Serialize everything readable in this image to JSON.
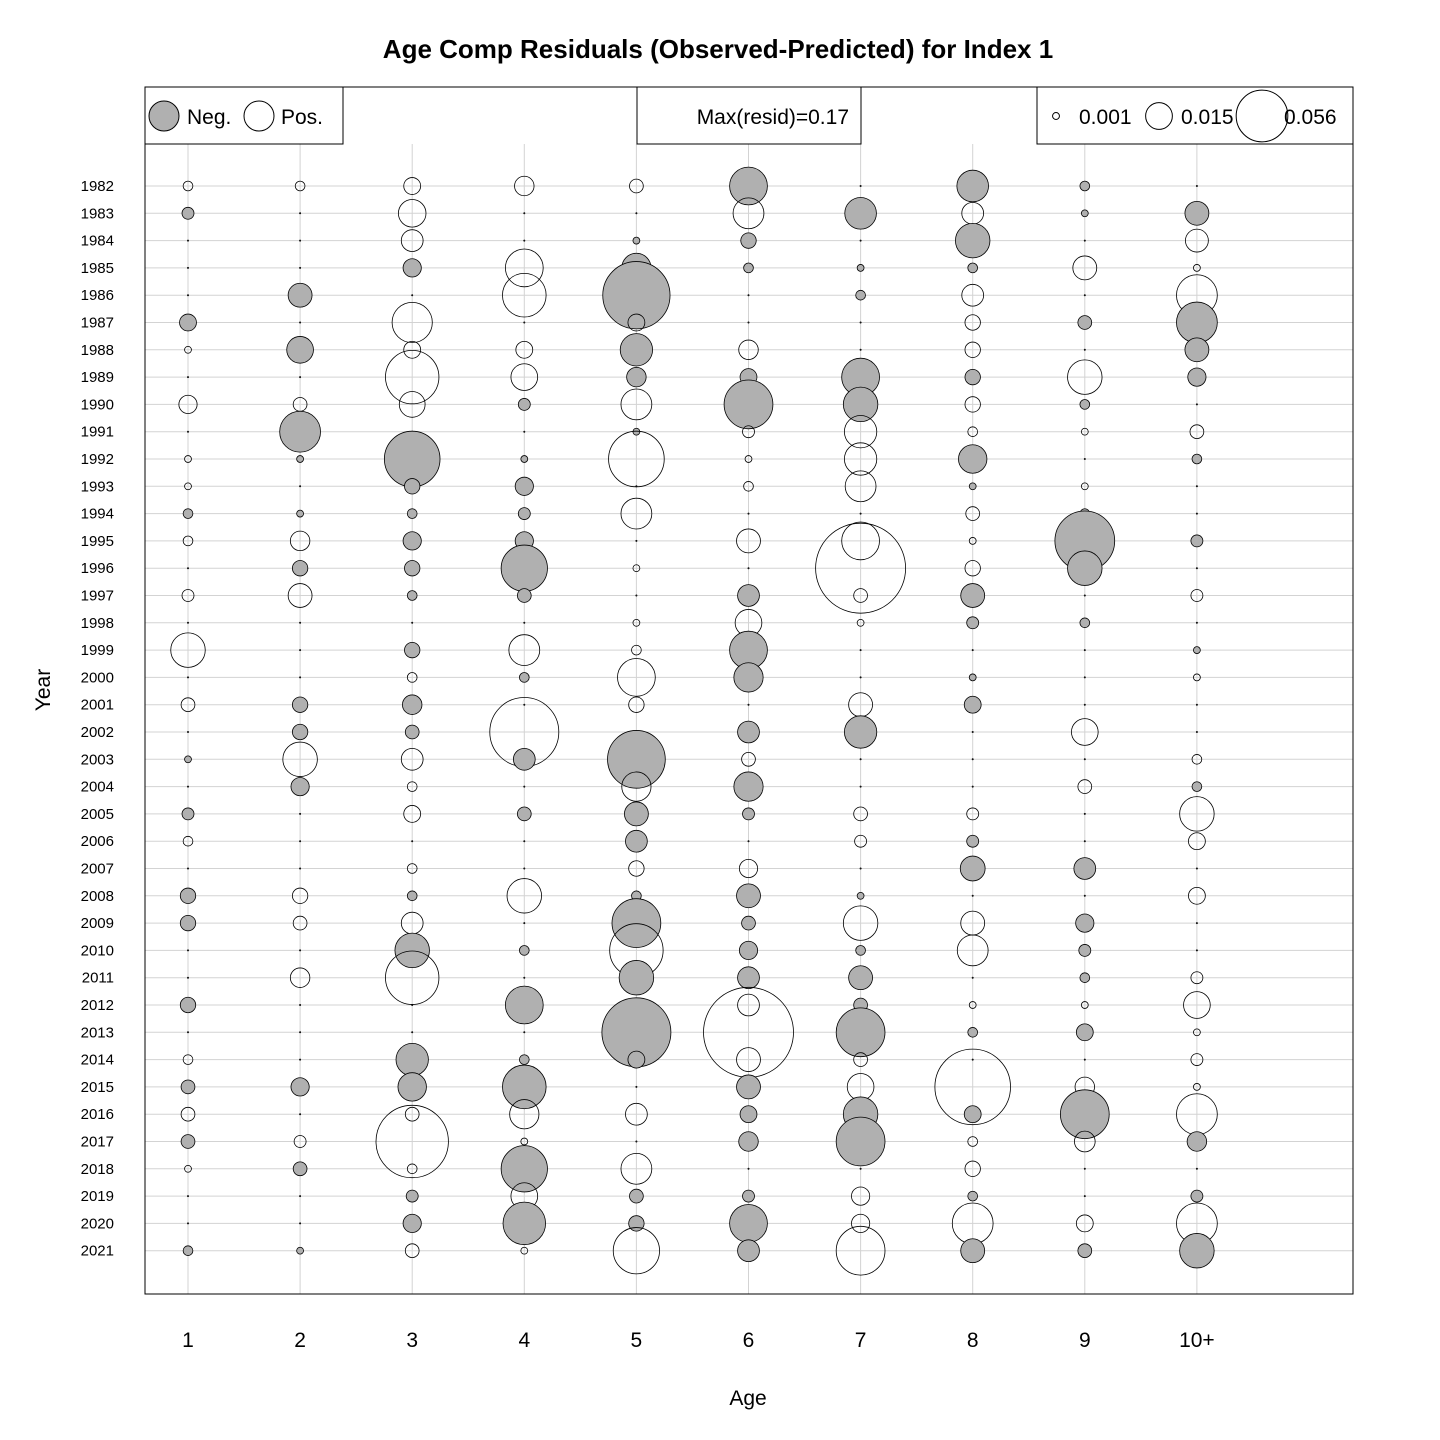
{
  "chart_data": {
    "type": "scatter",
    "title": "Age Comp Residuals (Observed-Predicted) for Index 1",
    "xlabel": "Age",
    "ylabel": "Year",
    "categories": [
      "1",
      "2",
      "3",
      "4",
      "5",
      "6",
      "7",
      "8",
      "9",
      "10+"
    ],
    "years": [
      1982,
      1983,
      1984,
      1985,
      1986,
      1987,
      1988,
      1989,
      1990,
      1991,
      1992,
      1993,
      1994,
      1995,
      1996,
      1997,
      1998,
      1999,
      2000,
      2001,
      2002,
      2003,
      2004,
      2005,
      2006,
      2007,
      2008,
      2009,
      2010,
      2011,
      2012,
      2013,
      2014,
      2015,
      2016,
      2017,
      2018,
      2019,
      2020,
      2021
    ],
    "grid": true,
    "bubble_encoding": "circle area proportional to |residual|; grey fill = negative, white fill = positive",
    "colors": {
      "negative": "#b0b0b0",
      "positive": "#ffffff",
      "grid": "#d3d3d3"
    },
    "legend": {
      "sign_labels": [
        "Neg.",
        "Pos."
      ],
      "max_label": "Max(resid)=0.17",
      "size_labels": [
        "0.001",
        "0.015",
        "0.056"
      ],
      "size_values": [
        0.001,
        0.015,
        0.056
      ]
    },
    "residuals": [
      [
        0.002,
        0.002,
        0.006,
        0.008,
        0.004,
        -0.03,
        0,
        -0.021,
        -0.002,
        0
      ],
      [
        -0.003,
        0,
        0.016,
        0,
        0,
        0.02,
        -0.021,
        0.01,
        -0.001,
        -0.012
      ],
      [
        0,
        0,
        0.01,
        0,
        -0.001,
        -0.005,
        0,
        -0.025,
        0,
        0.011
      ],
      [
        0,
        0,
        -0.007,
        0.03,
        -0.018,
        -0.002,
        -0.001,
        -0.002,
        0.012,
        0.001
      ],
      [
        0,
        -0.012,
        0,
        0.04,
        -0.095,
        0,
        -0.002,
        0.01,
        0,
        0.035
      ],
      [
        -0.006,
        0,
        0.034,
        0,
        0.006,
        0,
        0,
        0.005,
        -0.004,
        -0.035
      ],
      [
        0.001,
        -0.015,
        0.006,
        0.006,
        -0.022,
        0.008,
        0,
        0.005,
        0,
        -0.012
      ],
      [
        0,
        0,
        0.06,
        0.015,
        -0.008,
        -0.006,
        -0.03,
        -0.005,
        0.025,
        -0.007
      ],
      [
        0.007,
        0.004,
        0.014,
        -0.003,
        0.02,
        -0.05,
        -0.025,
        0.005,
        -0.002,
        0
      ],
      [
        0,
        -0.035,
        0,
        0,
        -0.001,
        0.003,
        0.022,
        0.002,
        0.001,
        0.004
      ],
      [
        0.001,
        -0.001,
        -0.065,
        -0.001,
        0.065,
        0.001,
        0.022,
        -0.017,
        0,
        -0.002
      ],
      [
        0.001,
        0,
        -0.005,
        -0.007,
        0,
        0.002,
        0.02,
        -0.001,
        0.001,
        0
      ],
      [
        -0.002,
        -0.001,
        -0.002,
        -0.003,
        0.02,
        0,
        0,
        0.004,
        -0.002,
        0
      ],
      [
        0.002,
        0.008,
        -0.007,
        -0.007,
        0,
        0.012,
        0.03,
        0.001,
        -0.075,
        -0.003
      ],
      [
        0,
        -0.005,
        -0.005,
        -0.045,
        0.001,
        0,
        0.17,
        0.005,
        -0.025,
        0
      ],
      [
        0.003,
        0.012,
        -0.002,
        -0.004,
        0,
        -0.01,
        0.004,
        -0.012,
        0,
        0.003
      ],
      [
        0,
        0,
        0,
        0,
        0.001,
        0.015,
        0.001,
        -0.003,
        -0.002,
        0
      ],
      [
        0.025,
        0,
        -0.005,
        0.02,
        0.002,
        -0.03,
        0,
        0,
        0,
        -0.001
      ],
      [
        0,
        0,
        0.002,
        -0.002,
        0.03,
        -0.018,
        0,
        -0.001,
        0,
        0.001
      ],
      [
        0.004,
        -0.005,
        -0.008,
        0,
        0.005,
        0,
        0.012,
        -0.006,
        0,
        0
      ],
      [
        0,
        -0.005,
        -0.004,
        0.1,
        0,
        -0.01,
        -0.022,
        0,
        0.015,
        0
      ],
      [
        -0.001,
        0.025,
        0.01,
        -0.01,
        -0.07,
        0.004,
        0,
        0,
        0,
        0.002
      ],
      [
        0,
        -0.007,
        0.002,
        0,
        0.018,
        -0.018,
        0,
        0,
        0.004,
        -0.002
      ],
      [
        -0.003,
        0,
        0.006,
        -0.004,
        -0.012,
        -0.003,
        0.004,
        0.003,
        0,
        0.025
      ],
      [
        0.002,
        0,
        0,
        0,
        -0.01,
        0,
        0.003,
        -0.003,
        0,
        0.006
      ],
      [
        0,
        0,
        0.002,
        0,
        0.005,
        0.007,
        0,
        -0.013,
        -0.01,
        0
      ],
      [
        -0.005,
        0.005,
        -0.002,
        0.025,
        -0.002,
        -0.012,
        -0.001,
        0,
        0,
        0.006
      ],
      [
        -0.005,
        0.004,
        0.01,
        0,
        -0.05,
        -0.004,
        0.025,
        0.012,
        -0.007,
        0
      ],
      [
        0,
        0,
        -0.025,
        -0.002,
        0.06,
        -0.007,
        -0.002,
        0.02,
        -0.003,
        0
      ],
      [
        0,
        0.008,
        0.06,
        0,
        -0.025,
        -0.01,
        -0.012,
        0,
        -0.002,
        0.003
      ],
      [
        -0.005,
        0,
        0,
        -0.03,
        0.003,
        0.01,
        -0.004,
        0.001,
        0.001,
        0.015
      ],
      [
        0,
        0,
        0,
        0,
        -0.1,
        0.17,
        -0.05,
        -0.002,
        -0.006,
        0.001
      ],
      [
        0.002,
        0,
        -0.022,
        -0.002,
        -0.006,
        0.012,
        0.004,
        0,
        0,
        0.003
      ],
      [
        -0.004,
        -0.007,
        -0.017,
        -0.04,
        0,
        -0.012,
        0.015,
        0.12,
        0.008,
        0.001
      ],
      [
        0.004,
        0,
        0.004,
        0.018,
        0.01,
        -0.006,
        -0.025,
        -0.006,
        -0.05,
        0.035
      ],
      [
        -0.004,
        0.003,
        0.11,
        0.001,
        0,
        -0.008,
        -0.05,
        0.002,
        0.009,
        -0.008
      ],
      [
        0.001,
        -0.004,
        0.002,
        -0.045,
        0.02,
        0,
        0,
        0.005,
        0,
        0
      ],
      [
        0,
        0,
        -0.003,
        0.015,
        -0.004,
        -0.003,
        0.007,
        -0.002,
        0,
        -0.003
      ],
      [
        0,
        0,
        -0.007,
        -0.038,
        -0.005,
        -0.03,
        0.007,
        0.035,
        0.006,
        0.035
      ],
      [
        -0.002,
        -0.001,
        0.004,
        0.001,
        0.045,
        -0.01,
        0.05,
        -0.012,
        -0.004,
        -0.025
      ]
    ]
  }
}
